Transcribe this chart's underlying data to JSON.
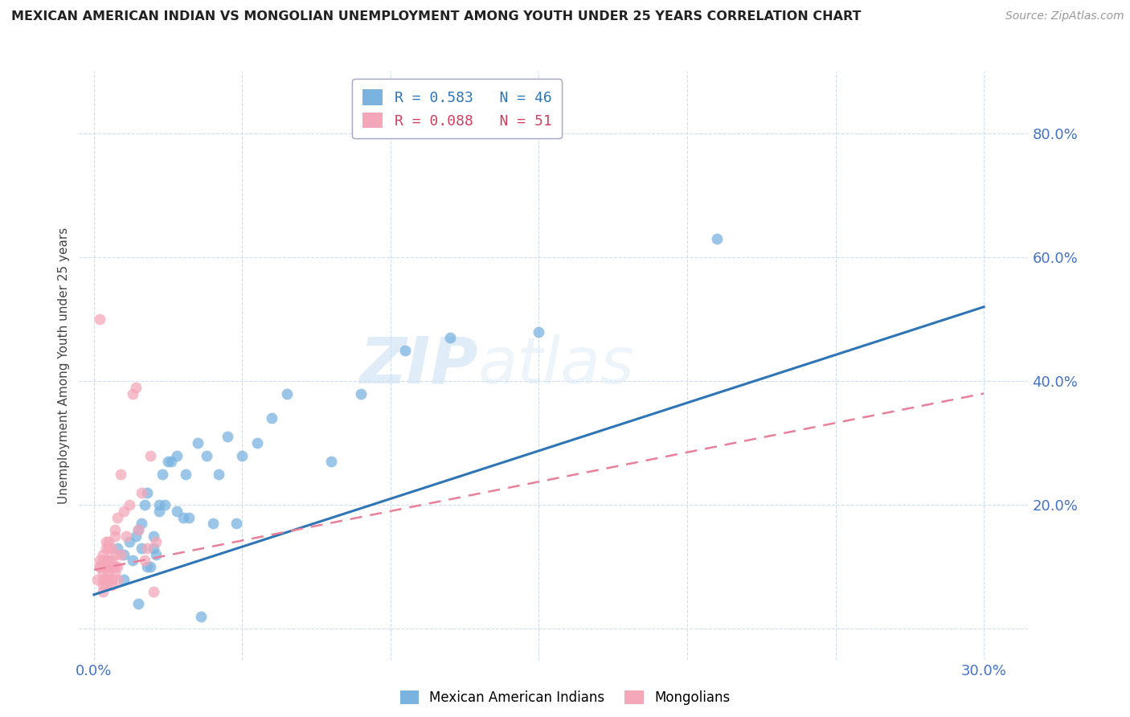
{
  "title": "MEXICAN AMERICAN INDIAN VS MONGOLIAN UNEMPLOYMENT AMONG YOUTH UNDER 25 YEARS CORRELATION CHART",
  "source": "Source: ZipAtlas.com",
  "ylabel": "Unemployment Among Youth under 25 years",
  "xlim": [
    -0.005,
    0.315
  ],
  "ylim": [
    -0.05,
    0.9
  ],
  "legend_blue_label": "R = 0.583   N = 46",
  "legend_pink_label": "R = 0.088   N = 51",
  "blue_color": "#7ab3e0",
  "pink_color": "#f4a7b9",
  "blue_line_color": "#2e75b6",
  "pink_line_color": "#f4a7b9",
  "watermark_zip": "ZIP",
  "watermark_atlas": "atlas",
  "blue_scatter_x": [
    0.005,
    0.008,
    0.01,
    0.01,
    0.012,
    0.013,
    0.014,
    0.015,
    0.015,
    0.016,
    0.016,
    0.017,
    0.018,
    0.018,
    0.019,
    0.02,
    0.02,
    0.021,
    0.022,
    0.022,
    0.023,
    0.024,
    0.025,
    0.026,
    0.028,
    0.028,
    0.03,
    0.031,
    0.032,
    0.035,
    0.036,
    0.038,
    0.04,
    0.042,
    0.045,
    0.048,
    0.05,
    0.055,
    0.06,
    0.065,
    0.08,
    0.09,
    0.105,
    0.12,
    0.15,
    0.21
  ],
  "blue_scatter_y": [
    0.1,
    0.13,
    0.08,
    0.12,
    0.14,
    0.11,
    0.15,
    0.04,
    0.16,
    0.13,
    0.17,
    0.2,
    0.1,
    0.22,
    0.1,
    0.13,
    0.15,
    0.12,
    0.2,
    0.19,
    0.25,
    0.2,
    0.27,
    0.27,
    0.19,
    0.28,
    0.18,
    0.25,
    0.18,
    0.3,
    0.02,
    0.28,
    0.17,
    0.25,
    0.31,
    0.17,
    0.28,
    0.3,
    0.34,
    0.38,
    0.27,
    0.38,
    0.45,
    0.47,
    0.48,
    0.63
  ],
  "pink_scatter_x": [
    0.001,
    0.002,
    0.002,
    0.002,
    0.003,
    0.003,
    0.003,
    0.003,
    0.003,
    0.003,
    0.003,
    0.004,
    0.004,
    0.004,
    0.004,
    0.004,
    0.004,
    0.005,
    0.005,
    0.005,
    0.005,
    0.005,
    0.005,
    0.006,
    0.006,
    0.006,
    0.006,
    0.006,
    0.007,
    0.007,
    0.007,
    0.007,
    0.007,
    0.008,
    0.008,
    0.008,
    0.009,
    0.009,
    0.01,
    0.011,
    0.012,
    0.013,
    0.014,
    0.015,
    0.016,
    0.017,
    0.018,
    0.019,
    0.02,
    0.021,
    0.002
  ],
  "pink_scatter_y": [
    0.08,
    0.1,
    0.1,
    0.11,
    0.06,
    0.07,
    0.08,
    0.09,
    0.1,
    0.11,
    0.12,
    0.07,
    0.08,
    0.1,
    0.11,
    0.13,
    0.14,
    0.08,
    0.09,
    0.1,
    0.11,
    0.13,
    0.14,
    0.07,
    0.08,
    0.1,
    0.11,
    0.13,
    0.09,
    0.1,
    0.12,
    0.15,
    0.16,
    0.08,
    0.1,
    0.18,
    0.12,
    0.25,
    0.19,
    0.15,
    0.2,
    0.38,
    0.39,
    0.16,
    0.22,
    0.11,
    0.13,
    0.28,
    0.06,
    0.14,
    0.5
  ],
  "blue_line_x": [
    0.0,
    0.3
  ],
  "blue_line_y": [
    0.055,
    0.52
  ],
  "pink_line_x": [
    0.0,
    0.3
  ],
  "pink_line_y": [
    0.095,
    0.38
  ]
}
